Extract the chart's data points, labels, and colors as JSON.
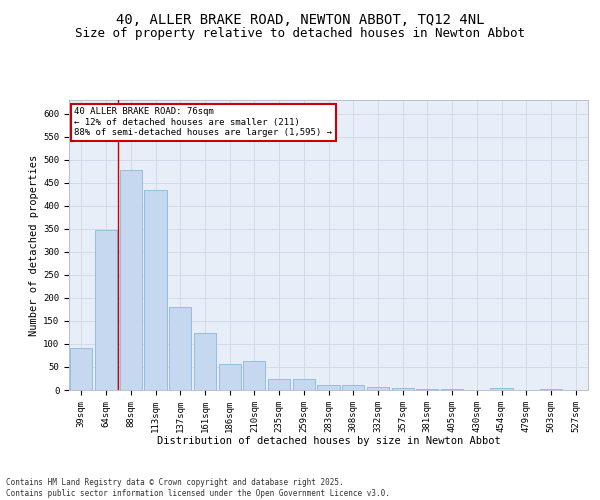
{
  "title_line1": "40, ALLER BRAKE ROAD, NEWTON ABBOT, TQ12 4NL",
  "title_line2": "Size of property relative to detached houses in Newton Abbot",
  "xlabel": "Distribution of detached houses by size in Newton Abbot",
  "ylabel": "Number of detached properties",
  "categories": [
    "39sqm",
    "64sqm",
    "88sqm",
    "113sqm",
    "137sqm",
    "161sqm",
    "186sqm",
    "210sqm",
    "235sqm",
    "259sqm",
    "283sqm",
    "308sqm",
    "332sqm",
    "357sqm",
    "381sqm",
    "405sqm",
    "430sqm",
    "454sqm",
    "479sqm",
    "503sqm",
    "527sqm"
  ],
  "values": [
    92,
    348,
    478,
    435,
    181,
    124,
    57,
    64,
    23,
    23,
    11,
    11,
    7,
    4,
    2,
    2,
    0,
    5,
    0,
    2,
    0
  ],
  "bar_color": "#c5d8f0",
  "bar_edge_color": "#7bafd4",
  "grid_color": "#d0d8e8",
  "background_color": "#e8eef8",
  "fig_background": "#ffffff",
  "annotation_text_line1": "40 ALLER BRAKE ROAD: 76sqm",
  "annotation_text_line2": "← 12% of detached houses are smaller (211)",
  "annotation_text_line3": "88% of semi-detached houses are larger (1,595) →",
  "annotation_box_color": "#ffffff",
  "annotation_box_edge_color": "#cc0000",
  "red_line_x": 1.5,
  "ylim": [
    0,
    630
  ],
  "yticks": [
    0,
    50,
    100,
    150,
    200,
    250,
    300,
    350,
    400,
    450,
    500,
    550,
    600
  ],
  "footnote": "Contains HM Land Registry data © Crown copyright and database right 2025.\nContains public sector information licensed under the Open Government Licence v3.0.",
  "title_fontsize": 10,
  "subtitle_fontsize": 9,
  "axis_label_fontsize": 7.5,
  "tick_fontsize": 6.5,
  "annot_fontsize": 6.5,
  "footnote_fontsize": 5.5
}
